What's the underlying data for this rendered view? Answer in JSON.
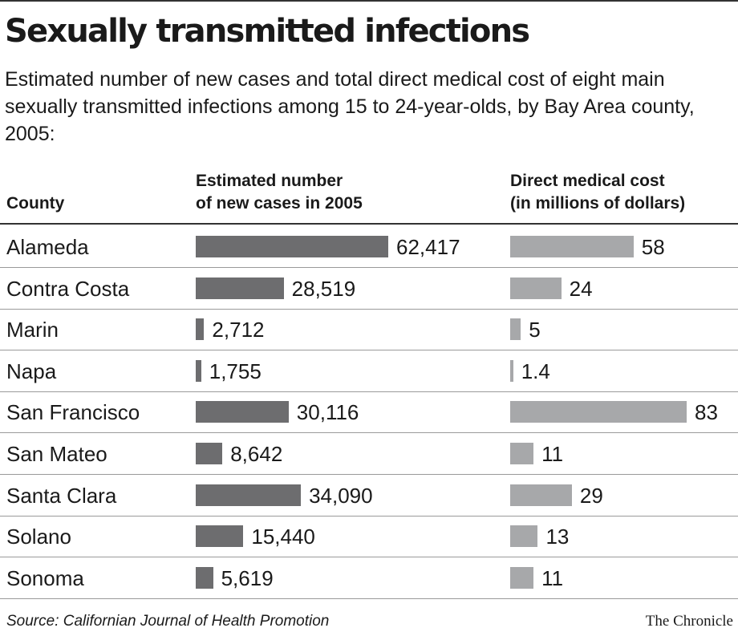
{
  "chart_data": {
    "type": "bar",
    "title": "Sexually transmitted infections",
    "subtitle": "Estimated number of new cases and total direct medical cost of eight main sexually transmitted infections among 15 to 24-year-olds, by Bay Area county, 2005:",
    "category_header": "County",
    "categories": [
      "Alameda",
      "Contra Costa",
      "Marin",
      "Napa",
      "San Francisco",
      "San Mateo",
      "Santa Clara",
      "Solano",
      "Sonoma"
    ],
    "series": [
      {
        "name": "Estimated number of new cases in 2005",
        "header_lines": [
          "Estimated number",
          "of new cases in 2005"
        ],
        "values": [
          62417,
          28519,
          2712,
          1755,
          30116,
          8642,
          34090,
          15440,
          5619
        ],
        "labels": [
          "62,417",
          "28,519",
          "2,712",
          "1,755",
          "30,116",
          "8,642",
          "34,090",
          "15,440",
          "5,619"
        ],
        "color": "#6d6d6f"
      },
      {
        "name": "Direct medical cost (in millions of dollars)",
        "header_lines": [
          "Direct medical cost",
          "(in millions of dollars)"
        ],
        "values": [
          58,
          24,
          5,
          1.4,
          83,
          11,
          29,
          13,
          11
        ],
        "labels": [
          "58",
          "24",
          "5",
          "1.4",
          "83",
          "11",
          "29",
          "13",
          "11"
        ],
        "color": "#a7a8aa"
      }
    ],
    "orientation": "horizontal",
    "grid": false,
    "legend": "none"
  },
  "footer": {
    "source": "Source: Californian Journal of Health Promotion",
    "credit": "The Chronicle"
  }
}
